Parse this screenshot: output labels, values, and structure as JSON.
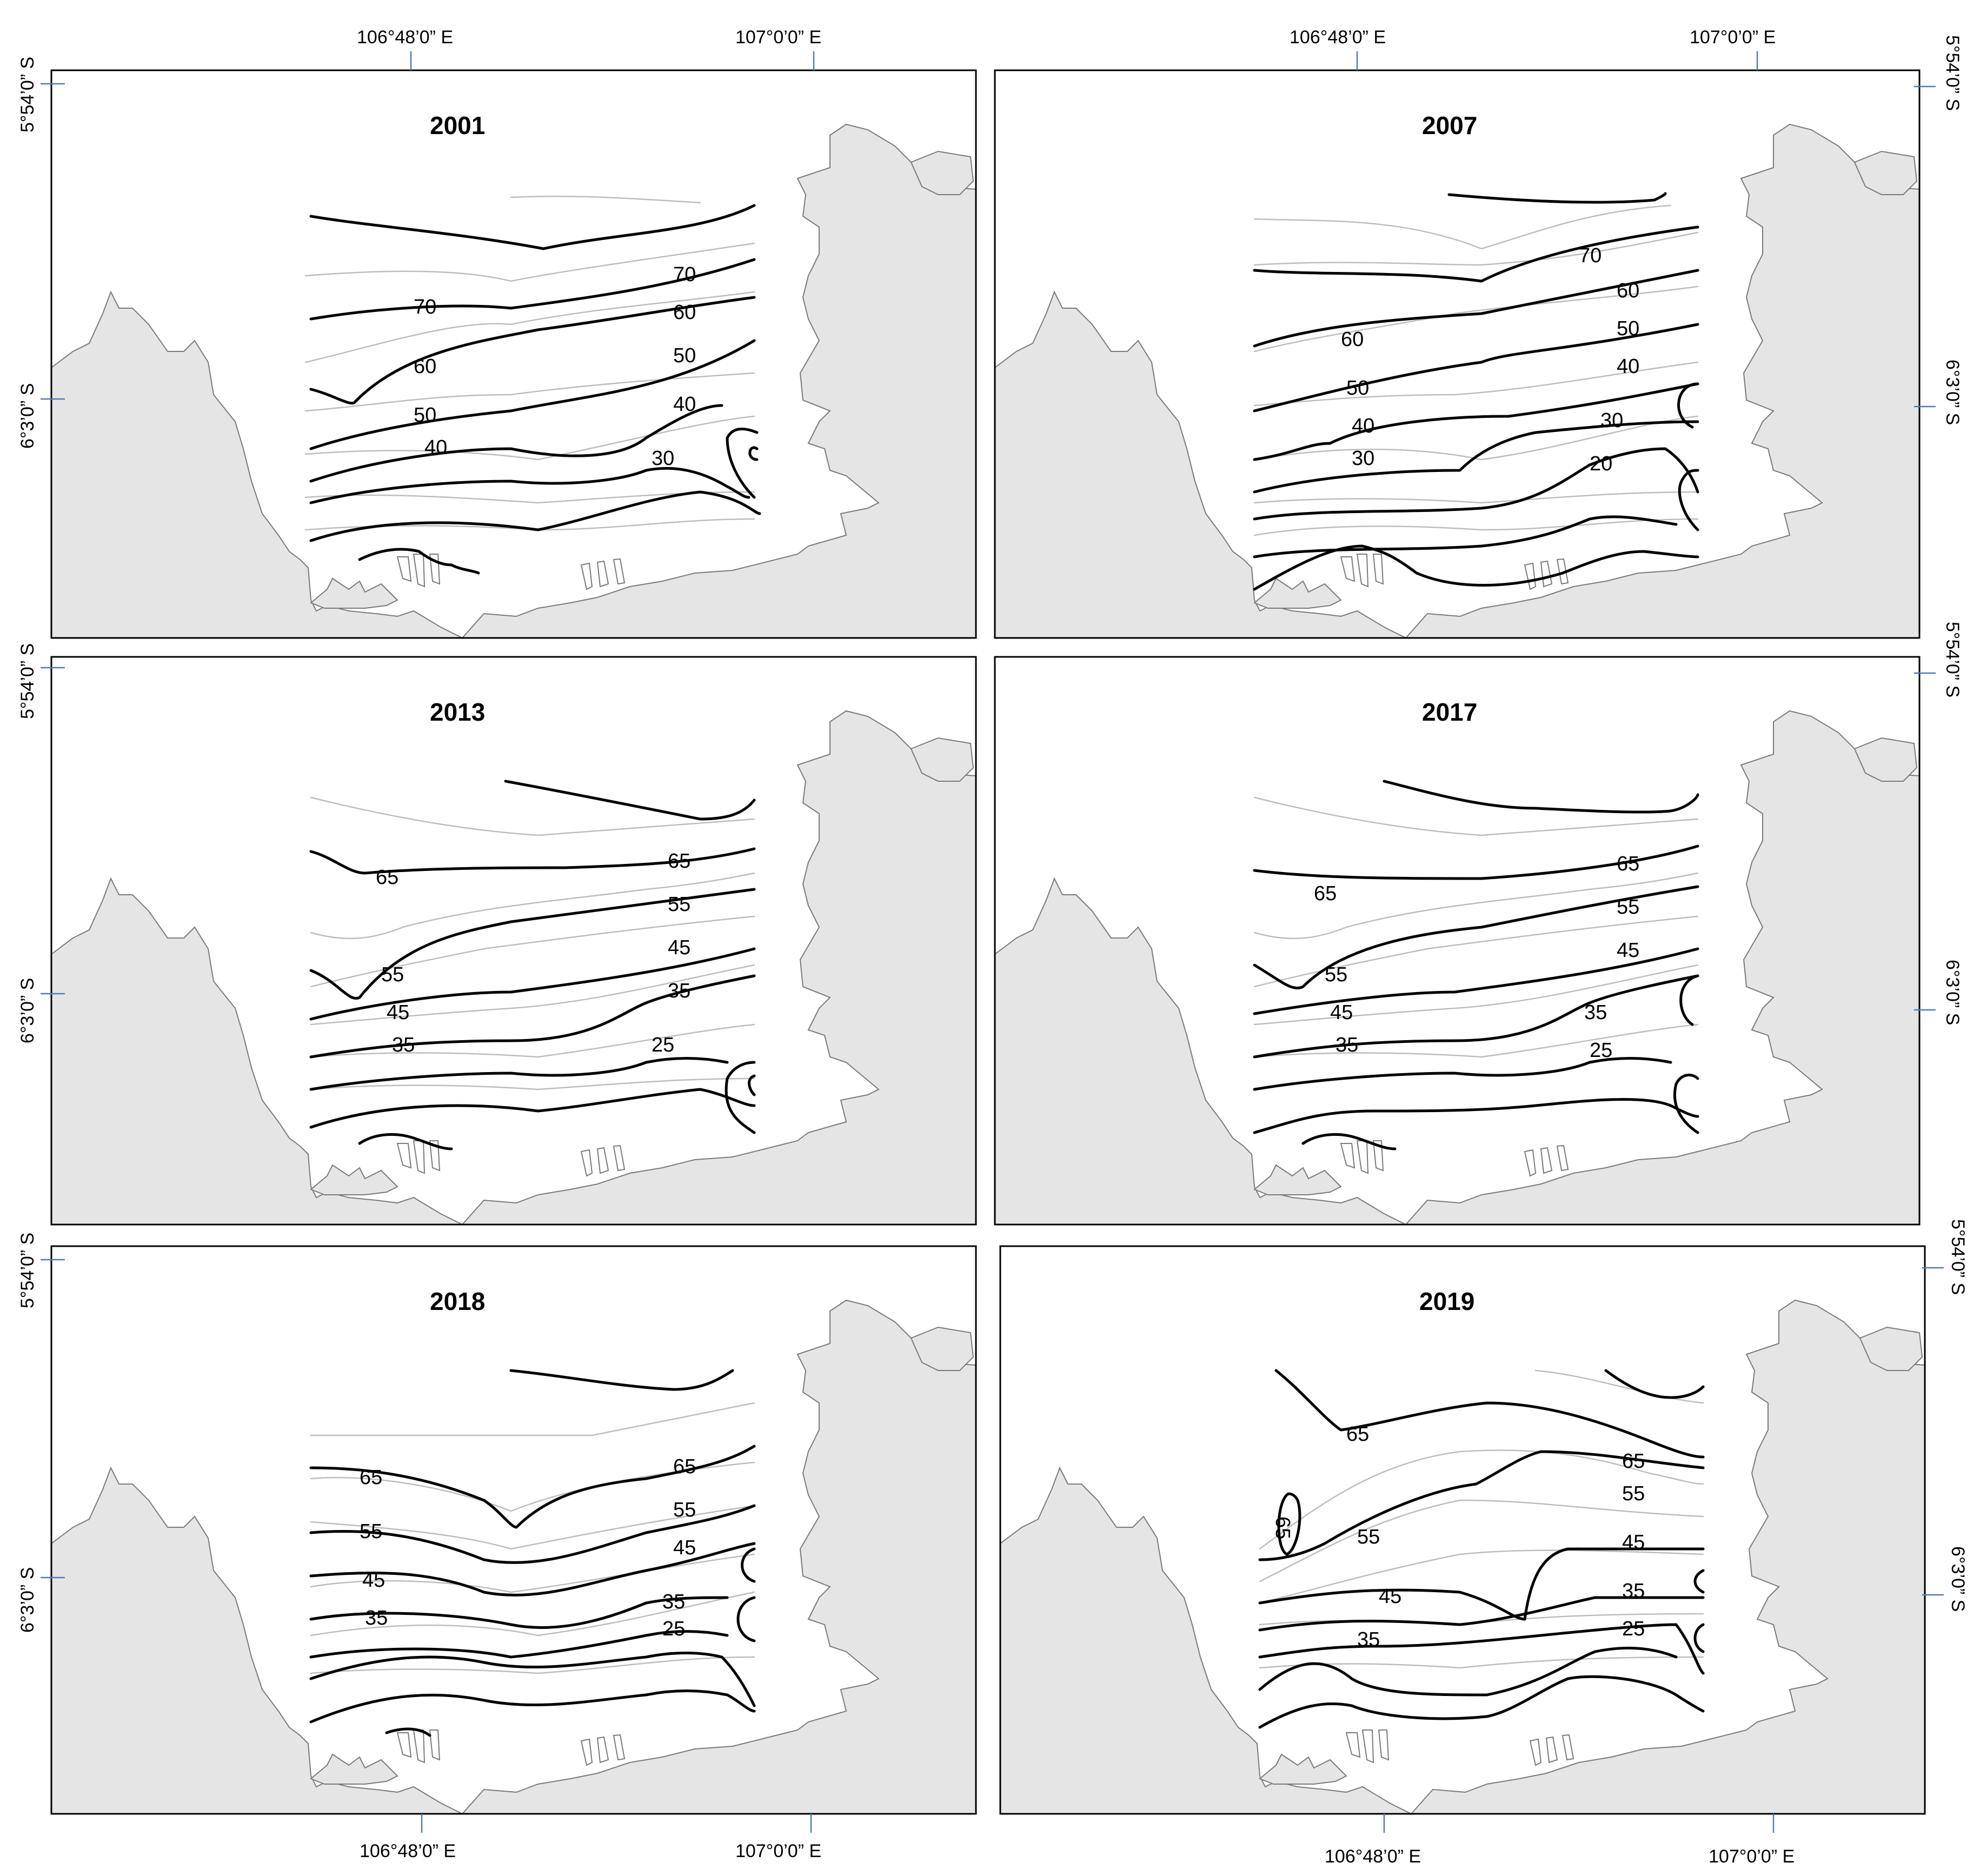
{
  "map": {
    "colors": {
      "land": "#e5e5e5",
      "sea": "#ffffff",
      "frame": "#000000",
      "major_contour": "#000000",
      "minor_contour": "#bdbdbd",
      "tick": "#4a7cc0"
    },
    "longitude_labels": [
      "106°48’0” E",
      "107°0’0” E"
    ],
    "latitude_labels": [
      "5°54’0” S",
      "6°3’0” S"
    ],
    "panels": [
      {
        "year": "2001",
        "contours": [
          {
            "label": "70",
            "value": 70
          },
          {
            "label": "70",
            "value": 70
          },
          {
            "label": "60",
            "value": 60
          },
          {
            "label": "60",
            "value": 60
          },
          {
            "label": "50",
            "value": 50
          },
          {
            "label": "50",
            "value": 50
          },
          {
            "label": "40",
            "value": 40
          },
          {
            "label": "40",
            "value": 40
          },
          {
            "label": "30",
            "value": 30
          }
        ]
      },
      {
        "year": "2007",
        "contours": [
          {
            "label": "70",
            "value": 70
          },
          {
            "label": "60",
            "value": 60
          },
          {
            "label": "60",
            "value": 60
          },
          {
            "label": "50",
            "value": 50
          },
          {
            "label": "50",
            "value": 50
          },
          {
            "label": "40",
            "value": 40
          },
          {
            "label": "40",
            "value": 40
          },
          {
            "label": "30",
            "value": 30
          },
          {
            "label": "30",
            "value": 30
          },
          {
            "label": "20",
            "value": 20
          }
        ]
      },
      {
        "year": "2013",
        "contours": [
          {
            "label": "65",
            "value": 65
          },
          {
            "label": "65",
            "value": 65
          },
          {
            "label": "55",
            "value": 55
          },
          {
            "label": "55",
            "value": 55
          },
          {
            "label": "45",
            "value": 45
          },
          {
            "label": "45",
            "value": 45
          },
          {
            "label": "35",
            "value": 35
          },
          {
            "label": "35",
            "value": 35
          },
          {
            "label": "25",
            "value": 25
          }
        ]
      },
      {
        "year": "2017",
        "contours": [
          {
            "label": "65",
            "value": 65
          },
          {
            "label": "65",
            "value": 65
          },
          {
            "label": "55",
            "value": 55
          },
          {
            "label": "55",
            "value": 55
          },
          {
            "label": "45",
            "value": 45
          },
          {
            "label": "45",
            "value": 45
          },
          {
            "label": "35",
            "value": 35
          },
          {
            "label": "35",
            "value": 35
          },
          {
            "label": "25",
            "value": 25
          }
        ]
      },
      {
        "year": "2018",
        "contours": [
          {
            "label": "65",
            "value": 65
          },
          {
            "label": "65",
            "value": 65
          },
          {
            "label": "55",
            "value": 55
          },
          {
            "label": "55",
            "value": 55
          },
          {
            "label": "45",
            "value": 45
          },
          {
            "label": "45",
            "value": 45
          },
          {
            "label": "35",
            "value": 35
          },
          {
            "label": "35",
            "value": 35
          },
          {
            "label": "25",
            "value": 25
          }
        ]
      },
      {
        "year": "2019",
        "contours": [
          {
            "label": "65",
            "value": 65
          },
          {
            "label": "65",
            "value": 65
          },
          {
            "label": "65",
            "value": 65
          },
          {
            "label": "55",
            "value": 55
          },
          {
            "label": "55",
            "value": 55
          },
          {
            "label": "45",
            "value": 45
          },
          {
            "label": "45",
            "value": 45
          },
          {
            "label": "35",
            "value": 35
          },
          {
            "label": "35",
            "value": 35
          },
          {
            "label": "25",
            "value": 25
          }
        ]
      }
    ]
  }
}
